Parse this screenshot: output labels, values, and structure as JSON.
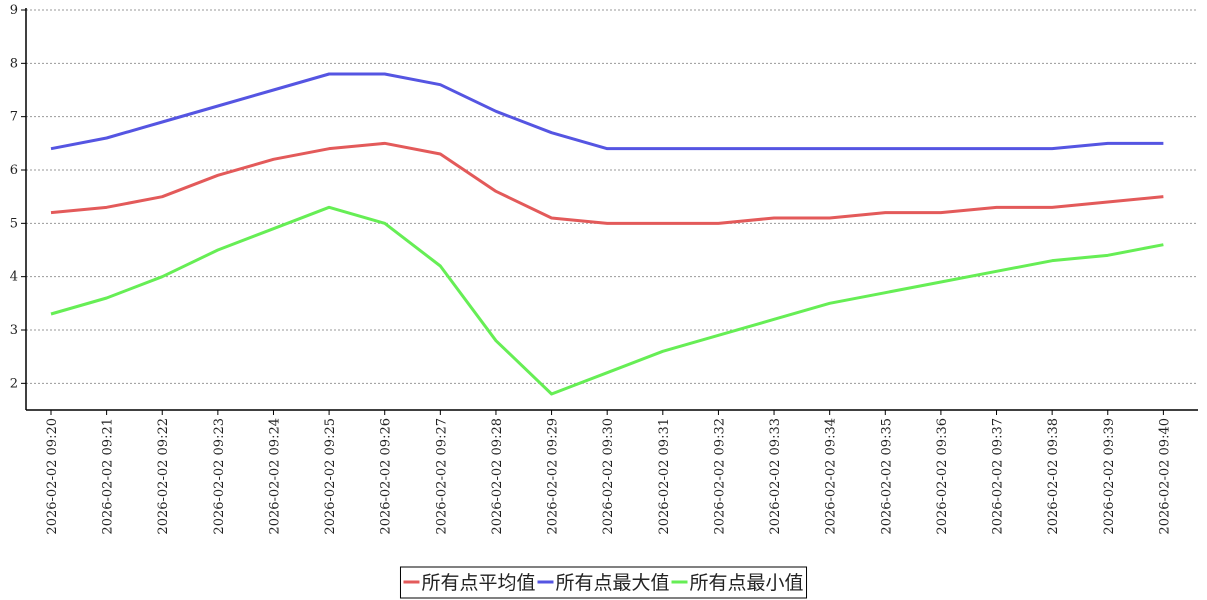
{
  "chart_data": {
    "type": "line",
    "categories": [
      "2026-02-02 09:20",
      "2026-02-02 09:21",
      "2026-02-02 09:22",
      "2026-02-02 09:23",
      "2026-02-02 09:24",
      "2026-02-02 09:25",
      "2026-02-02 09:26",
      "2026-02-02 09:27",
      "2026-02-02 09:28",
      "2026-02-02 09:29",
      "2026-02-02 09:30",
      "2026-02-02 09:31",
      "2026-02-02 09:32",
      "2026-02-02 09:33",
      "2026-02-02 09:34",
      "2026-02-02 09:35",
      "2026-02-02 09:36",
      "2026-02-02 09:37",
      "2026-02-02 09:38",
      "2026-02-02 09:39",
      "2026-02-02 09:40"
    ],
    "series": [
      {
        "name": "所有点平均值",
        "color": "#e35a5a",
        "values": [
          5.2,
          5.3,
          5.5,
          5.9,
          6.2,
          6.4,
          6.5,
          6.3,
          5.6,
          5.1,
          5.0,
          5.0,
          5.0,
          5.1,
          5.1,
          5.2,
          5.2,
          5.3,
          5.3,
          5.4,
          5.5
        ]
      },
      {
        "name": "所有点最大值",
        "color": "#5555e2",
        "values": [
          6.4,
          6.6,
          6.9,
          7.2,
          7.5,
          7.8,
          7.8,
          7.6,
          7.1,
          6.7,
          6.4,
          6.4,
          6.4,
          6.4,
          6.4,
          6.4,
          6.4,
          6.4,
          6.4,
          6.5,
          6.5
        ]
      },
      {
        "name": "所有点最小值",
        "color": "#66ee55",
        "values": [
          3.3,
          3.6,
          4.0,
          4.5,
          4.9,
          5.3,
          5.0,
          4.2,
          2.8,
          1.8,
          2.2,
          2.6,
          2.9,
          3.2,
          3.5,
          3.7,
          3.9,
          4.1,
          4.3,
          4.4,
          4.6
        ]
      }
    ],
    "ylim": [
      1.5,
      9
    ],
    "yticks": [
      2,
      3,
      4,
      5,
      6,
      7,
      8,
      9
    ],
    "grid": true,
    "legend": "bottom"
  }
}
